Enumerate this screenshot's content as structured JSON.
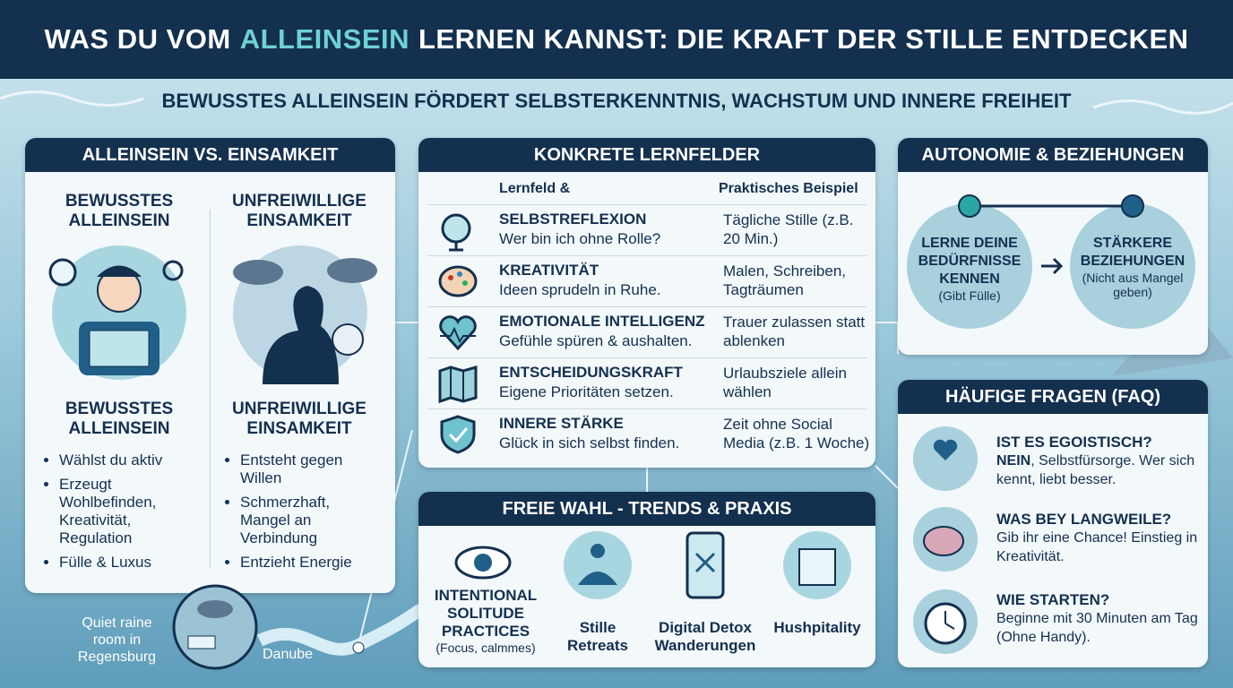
{
  "header": {
    "title_parts": [
      "WAS DU VOM",
      "ALLEINSEIN",
      "LERNEN KANNST: DIE KRAFT DER STILLE ENTDECKEN"
    ]
  },
  "subtitle": "BEWUSSTES ALLEINSEIN FÖRDERT SELBSTERKENNTNIS, WACHSTUM UND INNERE FREIHEIT",
  "comparison": {
    "title": "ALLEINSEIN VS. EINSAMKEIT",
    "left": {
      "top_label": "BEWUSSTES ALLEINSEIN",
      "bottom_label": "BEWUSSTES ALLEINSEIN",
      "bullets": [
        "Wählst du aktiv",
        "Erzeugt Wohlbefinden, Kreativität, Regulation",
        "Fülle & Luxus"
      ]
    },
    "right": {
      "top_label": "UNFREIWILLIGE EINSAMKEIT",
      "bottom_label": "UNFREIWILLIGE EINSAMKEIT",
      "bullets": [
        "Entsteht gegen Willen",
        "Schmerzhaft, Mangel an Verbindung",
        "Entzieht Energie"
      ]
    }
  },
  "fields": {
    "title": "KONKRETE LERNFELDER",
    "headers": [
      "Lernfeld &",
      "Praktisches Beispiel"
    ],
    "rows": [
      {
        "field": "SELBSTREFLEXION",
        "desc": "Wer bin ich ohne Rolle?",
        "example": "Tägliche Stille (z.B. 20 Min.)"
      },
      {
        "field": "KREATIVITÄT",
        "desc": "Ideen sprudeln in Ruhe.",
        "example": "Malen, Schreiben, Tagträumen"
      },
      {
        "field": "EMOTIONALE INTELLIGENZ",
        "desc": "Gefühle spüren & aushalten.",
        "example": "Trauer zulassen statt ablenken"
      },
      {
        "field": "ENTSCHEIDUNGSKRAFT",
        "desc": "Eigene Prioritäten setzen.",
        "example": "Urlaubsziele allein wählen"
      },
      {
        "field": "INNERE STÄRKE",
        "desc": "Glück in sich selbst finden.",
        "example": "Zeit ohne Social Media (z.B. 1 Woche)"
      }
    ]
  },
  "autonomy": {
    "title": "AUTONOMIE & BEZIEHUNGEN",
    "left": {
      "label": "LERNE DEINE BEDÜRFNISSE KENNEN",
      "note": "(Gibt Fülle)"
    },
    "right": {
      "label": "STÄRKERE BEZIEHUNGEN",
      "note": "(Nicht aus Mangel geben)"
    }
  },
  "faq": {
    "title": "HÄUFIGE FRAGEN (FAQ)",
    "items": [
      {
        "question": "IST ES EGOISTISCH?",
        "answer_bold": "NEIN",
        "answer": ", Selbstfürsorge. Wer sich kennt, liebt besser."
      },
      {
        "question": "WAS BEY LANGWEILE?",
        "answer": "Gib ihr eine Chance! Einstieg in Kreativität."
      },
      {
        "question": "WIE STARTEN?",
        "answer": "Beginne mit 30 Minuten am Tag (Ohne Handy)."
      }
    ]
  },
  "trends": {
    "title": "FREIE WAHL - TRENDS & PRAXIS",
    "items": [
      {
        "label": "INTENTIONAL SOLITUDE PRACTICES",
        "note": "(Focus, calmmes)"
      },
      {
        "label": "Stille Retreats"
      },
      {
        "label": "Digital Detox Wanderungen"
      },
      {
        "label": "Hushpitality"
      }
    ]
  },
  "map": {
    "place": "Quiet raine room in Regensburg",
    "river": "Danube"
  }
}
